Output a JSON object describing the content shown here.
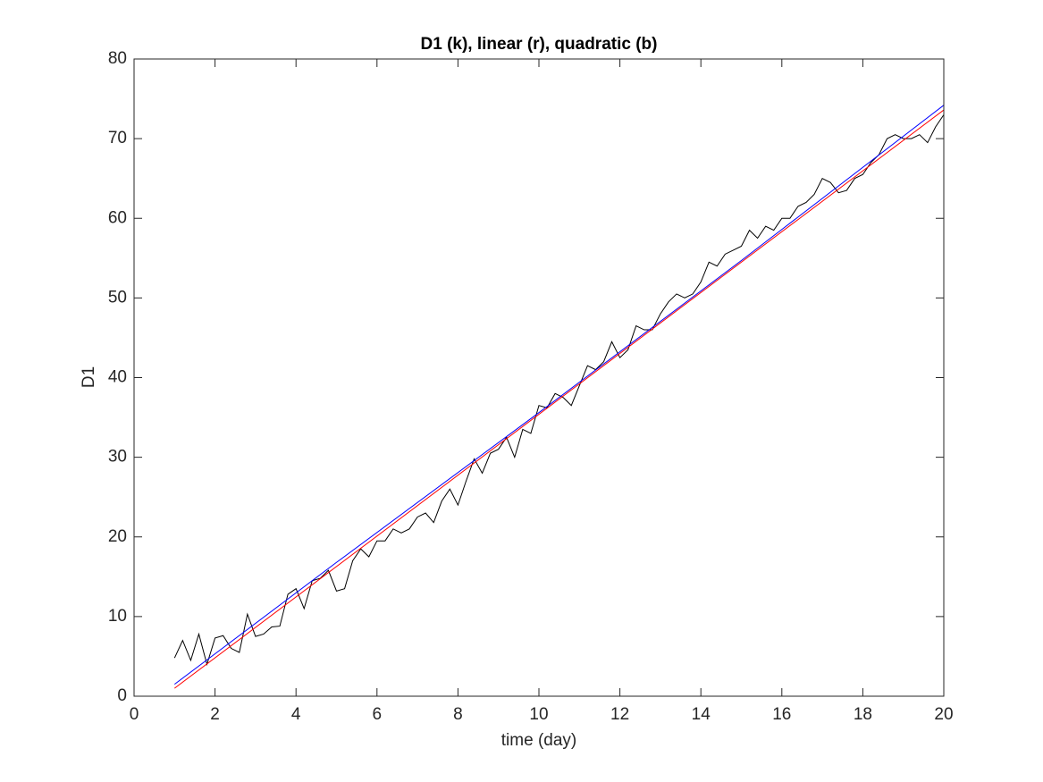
{
  "chart_data": {
    "type": "line",
    "title": "D1 (k), linear (r), quadratic (b)",
    "x_label": "time (day)",
    "y_label": "D1",
    "xlim": [
      0,
      20
    ],
    "xticks": [
      0,
      2,
      4,
      6,
      8,
      10,
      12,
      14,
      16,
      18,
      20
    ],
    "ylim": [
      0,
      80
    ],
    "yticks": [
      0,
      10,
      20,
      30,
      40,
      50,
      60,
      70,
      80
    ],
    "grid": false,
    "series": [
      {
        "color": "#000000",
        "x": [
          1.0,
          1.2,
          1.4,
          1.6,
          1.8,
          2.0,
          2.2,
          2.4,
          2.6,
          2.8,
          3.0,
          3.2,
          3.4,
          3.6,
          3.8,
          4.0,
          4.2,
          4.4,
          4.6,
          4.8,
          5.0,
          5.2,
          5.4,
          5.6,
          5.8,
          6.0,
          6.2,
          6.4,
          6.6,
          6.8,
          7.0,
          7.2,
          7.4,
          7.6,
          7.8,
          8.0,
          8.2,
          8.4,
          8.6,
          8.8,
          9.0,
          9.2,
          9.4,
          9.6,
          9.8,
          10.0,
          10.2,
          10.4,
          10.6,
          10.8,
          11.0,
          11.2,
          11.4,
          11.6,
          11.8,
          12.0,
          12.2,
          12.4,
          12.6,
          12.8,
          13.0,
          13.2,
          13.4,
          13.6,
          13.8,
          14.0,
          14.2,
          14.4,
          14.6,
          14.8,
          15.0,
          15.2,
          15.4,
          15.6,
          15.8,
          16.0,
          16.2,
          16.4,
          16.6,
          16.8,
          17.0,
          17.2,
          17.4,
          17.6,
          17.8,
          18.0,
          18.2,
          18.4,
          18.6,
          18.8,
          19.0,
          19.2,
          19.4,
          19.6,
          19.8,
          20.0
        ],
        "values": [
          4.8,
          7.0,
          4.5,
          7.8,
          4.0,
          7.3,
          7.6,
          6.0,
          5.5,
          10.3,
          7.5,
          7.8,
          8.7,
          8.8,
          12.8,
          13.5,
          11.0,
          14.5,
          14.8,
          15.8,
          13.2,
          13.5,
          17.0,
          18.5,
          17.5,
          19.5,
          19.5,
          21.0,
          20.5,
          21.0,
          22.5,
          23.0,
          21.8,
          24.5,
          26.0,
          24.0,
          27.0,
          29.8,
          28.0,
          30.5,
          31.0,
          32.5,
          30.0,
          33.5,
          33.0,
          36.5,
          36.2,
          38.0,
          37.5,
          36.5,
          39.0,
          41.5,
          41.0,
          42.0,
          44.5,
          42.5,
          43.5,
          46.5,
          46.0,
          46.0,
          48.0,
          49.5,
          50.5,
          50.0,
          50.5,
          52.0,
          54.5,
          54.0,
          55.5,
          56.0,
          56.5,
          58.5,
          57.5,
          59.0,
          58.5,
          60.0,
          60.0,
          61.5,
          62.0,
          63.0,
          65.0,
          64.5,
          63.2,
          63.5,
          65.0,
          65.5,
          67.0,
          68.0,
          70.0,
          70.5,
          70.0,
          70.0,
          70.5,
          69.5,
          71.5,
          73.0
        ]
      },
      {
        "color": "#ff0000",
        "x": [
          1,
          20
        ],
        "values": [
          1.0,
          73.6
        ]
      },
      {
        "color": "#0000ff",
        "x": [
          1,
          5,
          10,
          15,
          20
        ],
        "values": [
          1.5,
          16.8,
          35.6,
          54.7,
          74.2
        ]
      }
    ]
  }
}
